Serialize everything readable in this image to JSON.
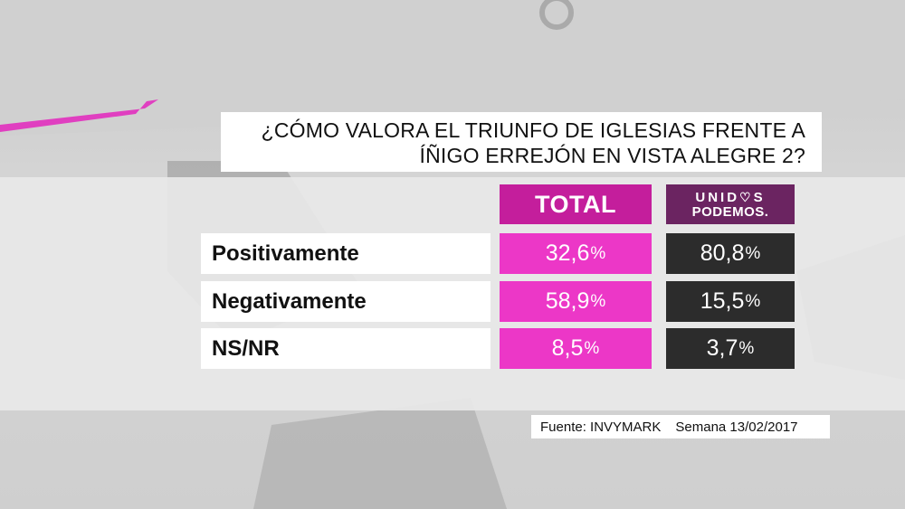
{
  "chart_data": {
    "type": "table",
    "title": "¿CÓMO VALORA EL TRIUNFO DE IGLESIAS FRENTE A ÍÑIGO ERREJÓN EN VISTA ALEGRE 2?",
    "title_lines": [
      "¿CÓMO VALORA EL TRIUNFO DE IGLESIAS FRENTE A",
      "ÍÑIGO ERREJÓN EN VISTA ALEGRE 2?"
    ],
    "columns": {
      "total": "TOTAL",
      "up_line1": "UNID",
      "up_line1_end": "S",
      "up_line2": "PODEMOS."
    },
    "rows": [
      {
        "label": "Positivamente",
        "total": "32,6",
        "up": "80,8"
      },
      {
        "label": "Negativamente",
        "total": "58,9",
        "up": "15,5"
      },
      {
        "label": "NS/NR",
        "total": "8,5",
        "up": "3,7"
      }
    ],
    "unit": "%",
    "colors": {
      "total": "#ec37c7",
      "total_header": "#c41e9c",
      "up": "#2c2c2c",
      "up_header": "#6b2461"
    }
  },
  "source": {
    "label": "Fuente: INVYMARK",
    "week": "Semana 13/02/2017"
  }
}
